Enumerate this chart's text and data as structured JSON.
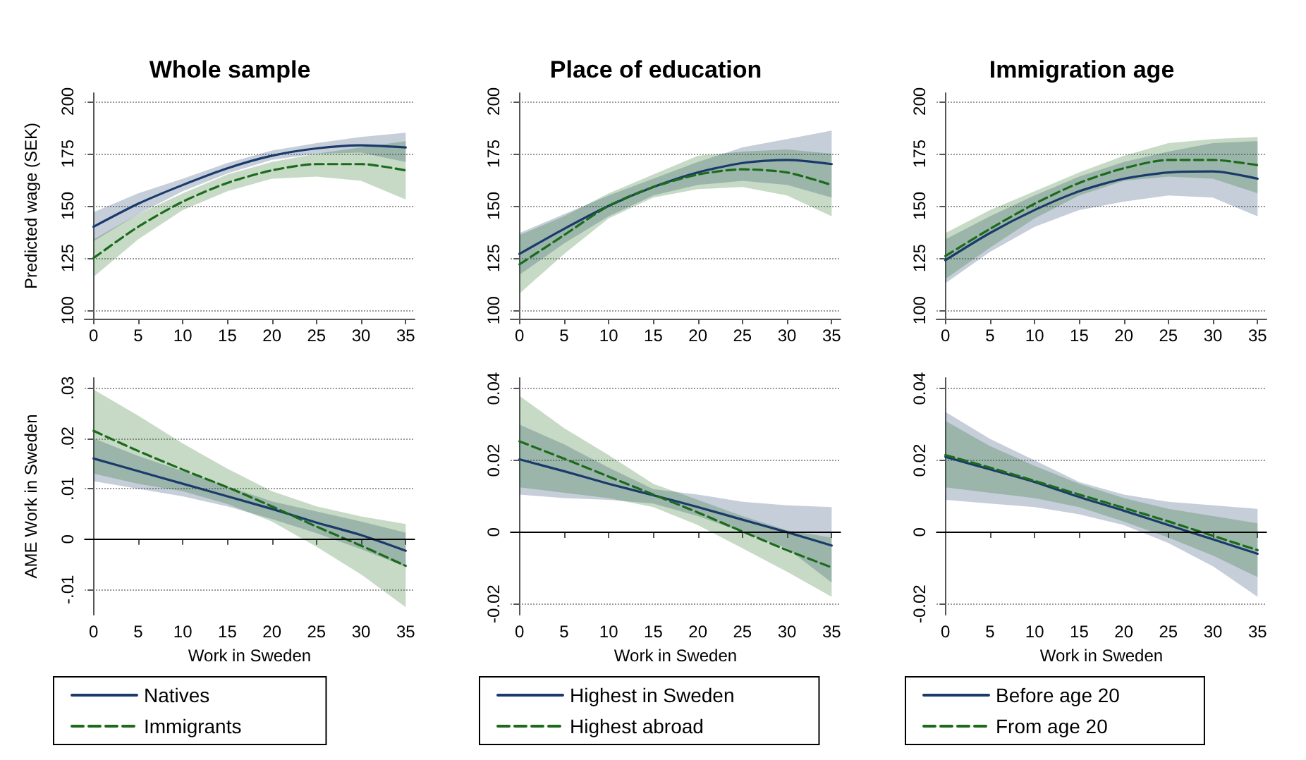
{
  "chart_data": [
    {
      "type": "line",
      "title": "Whole sample",
      "ylabel": "Predicted wage (SEK)",
      "x": [
        0,
        5,
        10,
        15,
        20,
        25,
        30,
        35
      ],
      "xlim": [
        -1,
        36
      ],
      "xticks": [
        0,
        5,
        10,
        15,
        20,
        25,
        30,
        35
      ],
      "ylim": [
        96,
        204
      ],
      "yticks": [
        100,
        125,
        150,
        175,
        200
      ],
      "grid": "y",
      "legend": false,
      "series": [
        {
          "color": "#1a3a6b",
          "line_style": "solid",
          "values": [
            140,
            151,
            160,
            168,
            174,
            177.5,
            179,
            178
          ],
          "lower": [
            133,
            146,
            157,
            165.5,
            172,
            175,
            175.5,
            171
          ],
          "upper": [
            147,
            156,
            163,
            170.5,
            176.5,
            180,
            183,
            185
          ]
        },
        {
          "color": "#1b6b1b",
          "line_style": "dashed",
          "values": [
            125,
            140,
            152,
            161,
            167,
            170,
            170,
            167
          ],
          "lower": [
            116,
            134,
            148,
            157,
            163,
            164,
            162,
            153
          ],
          "upper": [
            134,
            146,
            156,
            165,
            171,
            175,
            178,
            181
          ]
        }
      ]
    },
    {
      "type": "line",
      "title": "Place of education",
      "x": [
        0,
        5,
        10,
        15,
        20,
        25,
        30,
        35
      ],
      "xlim": [
        -1,
        36
      ],
      "xticks": [
        0,
        5,
        10,
        15,
        20,
        25,
        30,
        35
      ],
      "ylim": [
        96,
        204
      ],
      "yticks": [
        100,
        125,
        150,
        175,
        200
      ],
      "grid": "y",
      "legend": false,
      "series": [
        {
          "color": "#1a3a6b",
          "line_style": "solid",
          "values": [
            127,
            139,
            150,
            159,
            166,
            170.5,
            172,
            170
          ],
          "lower": [
            117,
            132,
            145,
            155,
            160,
            162,
            160,
            154
          ],
          "upper": [
            137,
            146,
            155,
            163,
            171,
            178,
            182,
            186
          ]
        },
        {
          "color": "#1b6b1b",
          "line_style": "dashed",
          "values": [
            122,
            136,
            150,
            159,
            165,
            167.5,
            166,
            160
          ],
          "lower": [
            108,
            127,
            144,
            154,
            158,
            159,
            155,
            145
          ],
          "upper": [
            136,
            145,
            156,
            165,
            174,
            176,
            177,
            175
          ]
        }
      ]
    },
    {
      "type": "line",
      "title": "Immigration age",
      "x": [
        0,
        5,
        10,
        15,
        20,
        25,
        30,
        35
      ],
      "xlim": [
        -1,
        36
      ],
      "xticks": [
        0,
        5,
        10,
        15,
        20,
        25,
        30,
        35
      ],
      "ylim": [
        96,
        204
      ],
      "yticks": [
        100,
        125,
        150,
        175,
        200
      ],
      "grid": "y",
      "legend": false,
      "series": [
        {
          "color": "#1a3a6b",
          "line_style": "solid",
          "values": [
            124,
            137,
            148,
            157,
            163,
            166,
            166.5,
            163
          ],
          "lower": [
            113,
            128,
            140,
            148,
            152,
            155,
            154,
            145
          ],
          "upper": [
            134,
            145,
            155,
            164,
            171,
            176,
            180,
            181
          ]
        },
        {
          "color": "#1b6b1b",
          "line_style": "dashed",
          "values": [
            126,
            139,
            151,
            161,
            168,
            172,
            172,
            169.5
          ],
          "lower": [
            115,
            130,
            144,
            155,
            162,
            164,
            163,
            156
          ],
          "upper": [
            137,
            148,
            157,
            166,
            174,
            180,
            182,
            183
          ]
        }
      ]
    },
    {
      "type": "line",
      "xlabel": "Work in Sweden",
      "ylabel": "AME Work in Sweden",
      "x": [
        0,
        5,
        10,
        15,
        20,
        25,
        30,
        35
      ],
      "xlim": [
        -1,
        36
      ],
      "xticks": [
        0,
        5,
        10,
        15,
        20,
        25,
        30,
        35
      ],
      "ylim": [
        -0.015,
        0.032
      ],
      "yticks": [
        {
          "value": 0.03,
          "label": ".03"
        },
        {
          "value": 0.02,
          "label": ".02"
        },
        {
          "value": 0.01,
          "label": ".01"
        },
        0,
        {
          "value": -0.01,
          "label": "-.01"
        }
      ],
      "grid": "y",
      "legend": "bottom",
      "ref_lines": [
        {
          "axis": "y",
          "value": 0,
          "color": "#000000"
        }
      ],
      "series": [
        {
          "name": "Natives",
          "color": "#1a3a6b",
          "line_style": "solid",
          "values": [
            0.016,
            0.0135,
            0.011,
            0.0085,
            0.006,
            0.0033,
            0.0008,
            -0.0023
          ],
          "lower": [
            0.0115,
            0.01,
            0.0085,
            0.0065,
            0.004,
            0.0012,
            -0.002,
            -0.0055
          ],
          "upper": [
            0.02,
            0.0165,
            0.0135,
            0.0105,
            0.0075,
            0.0055,
            0.0035,
            0.0013
          ]
        },
        {
          "name": "Immigrants",
          "color": "#1b6b1b",
          "line_style": "dashed",
          "values": [
            0.0215,
            0.0175,
            0.0138,
            0.0103,
            0.0065,
            0.0025,
            -0.0013,
            -0.0053
          ],
          "lower": [
            0.013,
            0.011,
            0.0095,
            0.007,
            0.0035,
            -0.0015,
            -0.007,
            -0.0135
          ],
          "upper": [
            0.0297,
            0.0245,
            0.019,
            0.014,
            0.0095,
            0.0065,
            0.0045,
            0.003
          ]
        }
      ]
    },
    {
      "type": "line",
      "xlabel": "Work in Sweden",
      "x": [
        0,
        5,
        10,
        15,
        20,
        25,
        30,
        35
      ],
      "xlim": [
        -1,
        36
      ],
      "xticks": [
        0,
        5,
        10,
        15,
        20,
        25,
        30,
        35
      ],
      "ylim": [
        -0.023,
        0.043
      ],
      "yticks": [
        0.04,
        0.02,
        0,
        -0.02
      ],
      "grid": "y",
      "legend": "bottom",
      "ref_lines": [
        {
          "axis": "y",
          "value": 0,
          "color": "#000000"
        }
      ],
      "series": [
        {
          "name": "Highest in Sweden",
          "color": "#1a3a6b",
          "line_style": "solid",
          "values": [
            0.0203,
            0.017,
            0.0135,
            0.0103,
            0.007,
            0.0035,
            0,
            -0.0037
          ],
          "lower": [
            0.0105,
            0.0095,
            0.009,
            0.008,
            0.0045,
            0,
            -0.0045,
            -0.014
          ],
          "upper": [
            0.03,
            0.0245,
            0.018,
            0.012,
            0.0105,
            0.0085,
            0.0075,
            0.007
          ]
        },
        {
          "name": "Highest abroad",
          "color": "#1b6b1b",
          "line_style": "dashed",
          "values": [
            0.0253,
            0.0205,
            0.0155,
            0.0105,
            0.0055,
            0.0002,
            -0.005,
            -0.0098
          ],
          "lower": [
            0.0125,
            0.011,
            0.0095,
            0.007,
            0.002,
            -0.0045,
            -0.011,
            -0.018
          ],
          "upper": [
            0.038,
            0.029,
            0.0215,
            0.0135,
            0.009,
            0.0045,
            0.0005,
            -0.0015
          ]
        }
      ]
    },
    {
      "type": "line",
      "xlabel": "Work in Sweden",
      "x": [
        0,
        5,
        10,
        15,
        20,
        25,
        30,
        35
      ],
      "xlim": [
        -1,
        36
      ],
      "xticks": [
        0,
        5,
        10,
        15,
        20,
        25,
        30,
        35
      ],
      "ylim": [
        -0.023,
        0.043
      ],
      "yticks": [
        0.04,
        0.02,
        0,
        -0.02
      ],
      "grid": "y",
      "legend": "bottom",
      "ref_lines": [
        {
          "axis": "y",
          "value": 0,
          "color": "#000000"
        }
      ],
      "series": [
        {
          "name": "Before age 20",
          "color": "#1a3a6b",
          "line_style": "solid",
          "values": [
            0.021,
            0.0175,
            0.014,
            0.0098,
            0.006,
            0.002,
            -0.002,
            -0.006
          ],
          "lower": [
            0.009,
            0.008,
            0.007,
            0.005,
            0.002,
            -0.003,
            -0.0095,
            -0.018
          ],
          "upper": [
            0.0335,
            0.026,
            0.02,
            0.014,
            0.0105,
            0.0085,
            0.0075,
            0.0065
          ]
        },
        {
          "name": "From age 20",
          "color": "#1b6b1b",
          "line_style": "dashed",
          "values": [
            0.0215,
            0.018,
            0.0143,
            0.0105,
            0.0068,
            0.003,
            -0.001,
            -0.005
          ],
          "lower": [
            0.0125,
            0.011,
            0.0095,
            0.007,
            0.003,
            -0.0015,
            -0.0065,
            -0.0125
          ],
          "upper": [
            0.031,
            0.024,
            0.0185,
            0.0135,
            0.0095,
            0.0065,
            0.0045,
            0.0025
          ]
        }
      ]
    }
  ]
}
